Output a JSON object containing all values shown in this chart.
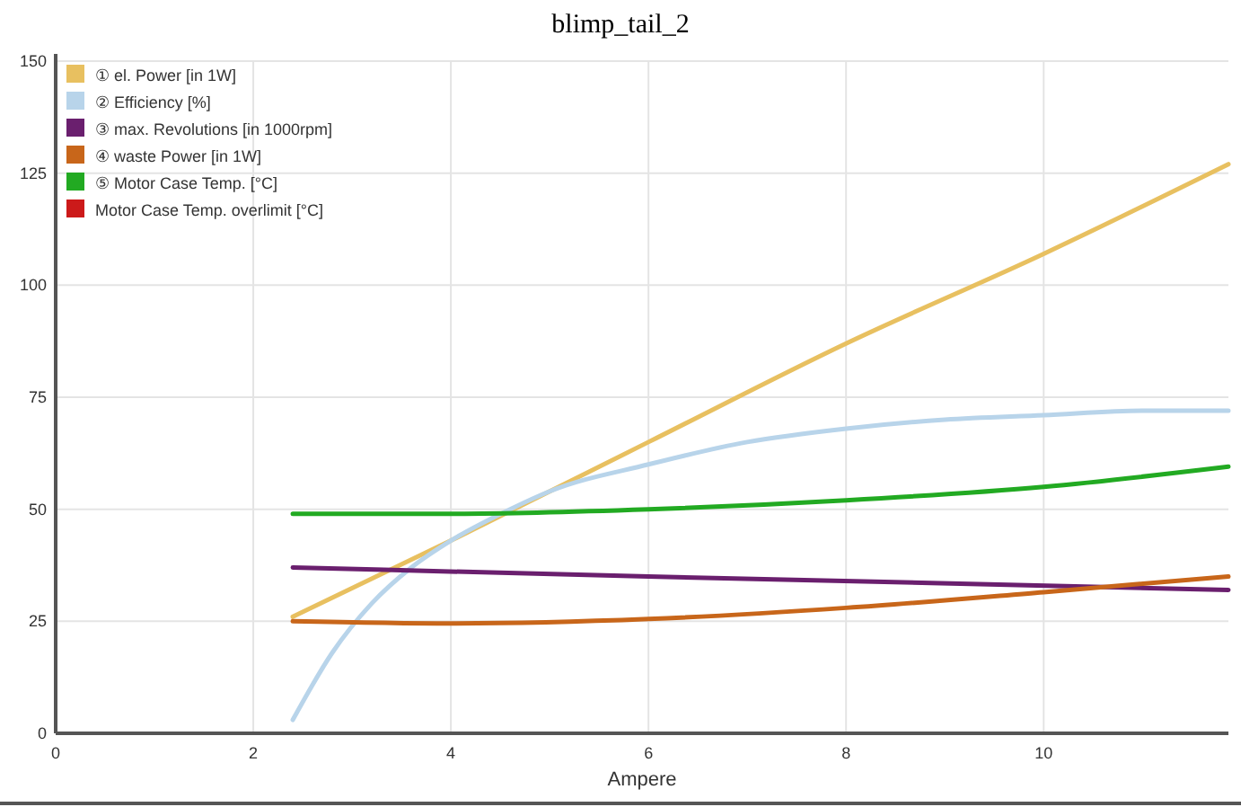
{
  "chart_data": {
    "type": "line",
    "title": "blimp_tail_2",
    "xlabel": "Ampere",
    "xlim": [
      0,
      11.87
    ],
    "xticks": [
      0,
      2,
      4,
      6,
      8,
      10
    ],
    "ylim": [
      0,
      150
    ],
    "yticks": [
      0,
      25,
      50,
      75,
      100,
      125,
      150
    ],
    "grid": true,
    "legend": "top left",
    "marker": "none",
    "line_style": "solid",
    "series": [
      {
        "name": "① el. Power [in 1W]",
        "color": "#e8c060",
        "x": [
          2.4,
          4,
          6,
          8,
          10,
          11.87
        ],
        "values": [
          26,
          43,
          65,
          87,
          107,
          127
        ]
      },
      {
        "name": "② Efficiency [%]",
        "color": "#b8d4ea",
        "x": [
          2.4,
          2.8,
          3.2,
          3.6,
          4,
          4.6,
          5,
          6,
          7,
          8,
          9,
          10,
          11,
          11.87
        ],
        "values": [
          3,
          18,
          29,
          37,
          43,
          50,
          54,
          60,
          65,
          68,
          70,
          71,
          72,
          72
        ]
      },
      {
        "name": "③ max. Revolutions [in 1000rpm]",
        "color": "#6a1f6e",
        "x": [
          2.4,
          6,
          11.87
        ],
        "values": [
          37,
          35,
          32
        ]
      },
      {
        "name": "④ waste Power [in 1W]",
        "color": "#c8661a",
        "x": [
          2.4,
          4,
          6,
          8,
          10,
          11.87
        ],
        "values": [
          25,
          24.5,
          25.5,
          28,
          31.5,
          35
        ]
      },
      {
        "name": "⑤ Motor Case Temp. [°C]",
        "color": "#22aa22",
        "x": [
          2.4,
          4,
          6,
          8,
          10,
          11.87
        ],
        "values": [
          49,
          49,
          50,
          52,
          55,
          59.5
        ]
      },
      {
        "name": "Motor Case Temp. overlimit [°C]",
        "color": "#cc1a1a"
      }
    ]
  }
}
